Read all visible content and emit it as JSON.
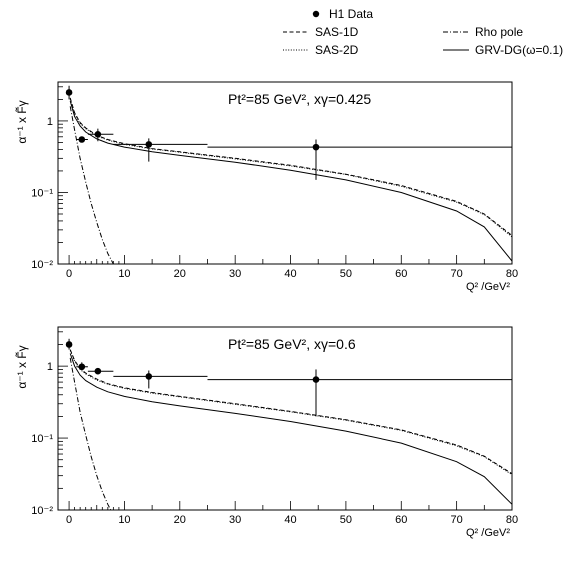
{
  "legend": {
    "entries": [
      {
        "label": "H1 Data",
        "style": "marker"
      },
      {
        "label": "SAS-1D",
        "style": "dashed"
      },
      {
        "label": "Rho pole",
        "style": "dashdot"
      },
      {
        "label": "SAS-2D",
        "style": "dotted"
      },
      {
        "label": "GRV-DG(ω=0.1)",
        "style": "solid"
      }
    ]
  },
  "chart_data": [
    {
      "type": "line",
      "annotation": "Pt²=85 GeV², xγ=0.425",
      "ylabel": "α⁻¹ x F̃γ",
      "xlabel": "Q² /GeV²",
      "xlim": [
        -2,
        80
      ],
      "ylim": [
        0.01,
        3.5
      ],
      "yscale": "log",
      "xticks": [
        0,
        10,
        20,
        30,
        40,
        50,
        60,
        70,
        80
      ],
      "yticks": [
        {
          "value": 0.01,
          "label": "10⁻²"
        },
        {
          "value": 0.1,
          "label": "10⁻¹"
        },
        {
          "value": 1,
          "label": "1"
        }
      ],
      "data_points": [
        {
          "x": 0,
          "y": 2.5,
          "xerr": [
            0,
            0
          ],
          "yerr": [
            0.5,
            0.6
          ]
        },
        {
          "x": 2.3,
          "y": 0.55,
          "xerr": [
            1.0,
            1.1
          ],
          "yerr": [
            0.0,
            0.0
          ]
        },
        {
          "x": 5.2,
          "y": 0.65,
          "xerr": [
            1.8,
            2.8
          ],
          "yerr": [
            0.13,
            0.13
          ]
        },
        {
          "x": 14.4,
          "y": 0.47,
          "xerr": [
            6.4,
            10.6
          ],
          "yerr": [
            0.2,
            0.1
          ]
        },
        {
          "x": 44.6,
          "y": 0.43,
          "xerr": [
            19.6,
            35.4
          ],
          "yerr": [
            0.28,
            0.12
          ]
        }
      ],
      "series": [
        {
          "name": "SAS-1D",
          "style": "dashed",
          "x": [
            0.2,
            1,
            2,
            3,
            5,
            7,
            10,
            15,
            20,
            30,
            40,
            50,
            60,
            70,
            75,
            80
          ],
          "values": [
            2.1,
            1.3,
            0.95,
            0.8,
            0.63,
            0.55,
            0.48,
            0.41,
            0.37,
            0.3,
            0.24,
            0.18,
            0.125,
            0.075,
            0.05,
            0.025
          ]
        },
        {
          "name": "SAS-2D",
          "style": "dotted",
          "x": [
            0.2,
            1,
            2,
            3,
            5,
            7,
            10,
            15,
            20,
            30,
            40,
            50,
            60,
            70,
            75,
            80
          ],
          "values": [
            2.0,
            1.25,
            0.92,
            0.78,
            0.62,
            0.54,
            0.47,
            0.405,
            0.365,
            0.295,
            0.235,
            0.178,
            0.122,
            0.073,
            0.049,
            0.024
          ]
        },
        {
          "name": "GRV-DG(ω=0.1)",
          "style": "solid",
          "x": [
            0.2,
            1,
            2,
            3,
            5,
            7,
            10,
            15,
            20,
            30,
            40,
            50,
            60,
            70,
            75,
            80
          ],
          "values": [
            1.9,
            1.15,
            0.85,
            0.7,
            0.56,
            0.49,
            0.43,
            0.37,
            0.33,
            0.265,
            0.205,
            0.15,
            0.1,
            0.055,
            0.033,
            0.011
          ]
        },
        {
          "name": "Rho pole",
          "style": "dashdot",
          "x": [
            0.2,
            1,
            2,
            3,
            4,
            5,
            6,
            7,
            8
          ],
          "values": [
            1.6,
            0.75,
            0.3,
            0.14,
            0.07,
            0.038,
            0.022,
            0.014,
            0.01
          ]
        }
      ]
    },
    {
      "type": "line",
      "annotation": "Pt²=85 GeV², xγ=0.6",
      "ylabel": "α⁻¹ x F̃γ",
      "xlabel": "Q² /GeV²",
      "xlim": [
        -2,
        80
      ],
      "ylim": [
        0.01,
        3.5
      ],
      "yscale": "log",
      "xticks": [
        0,
        10,
        20,
        30,
        40,
        50,
        60,
        70,
        80
      ],
      "yticks": [
        {
          "value": 0.01,
          "label": "10⁻²"
        },
        {
          "value": 0.1,
          "label": "10⁻¹"
        },
        {
          "value": 1,
          "label": "1"
        }
      ],
      "data_points": [
        {
          "x": 0,
          "y": 2.0,
          "xerr": [
            0,
            0
          ],
          "yerr": [
            0.3,
            0.4
          ]
        },
        {
          "x": 2.3,
          "y": 0.98,
          "xerr": [
            1.0,
            1.1
          ],
          "yerr": [
            0.1,
            0.15
          ]
        },
        {
          "x": 5.2,
          "y": 0.85,
          "xerr": [
            1.8,
            2.8
          ],
          "yerr": [
            0.07,
            0.07
          ]
        },
        {
          "x": 14.4,
          "y": 0.72,
          "xerr": [
            6.4,
            10.6
          ],
          "yerr": [
            0.23,
            0.15
          ]
        },
        {
          "x": 44.6,
          "y": 0.65,
          "xerr": [
            19.6,
            35.4
          ],
          "yerr": [
            0.45,
            0.25
          ]
        }
      ],
      "series": [
        {
          "name": "SAS-1D",
          "style": "dashed",
          "x": [
            0.2,
            1,
            2,
            3,
            5,
            7,
            10,
            15,
            20,
            30,
            40,
            50,
            60,
            70,
            75,
            80
          ],
          "values": [
            1.7,
            1.2,
            0.93,
            0.8,
            0.66,
            0.57,
            0.5,
            0.43,
            0.38,
            0.3,
            0.235,
            0.18,
            0.13,
            0.08,
            0.056,
            0.032
          ]
        },
        {
          "name": "SAS-2D",
          "style": "dotted",
          "x": [
            0.2,
            1,
            2,
            3,
            5,
            7,
            10,
            15,
            20,
            30,
            40,
            50,
            60,
            70,
            75,
            80
          ],
          "values": [
            1.65,
            1.17,
            0.9,
            0.78,
            0.64,
            0.56,
            0.49,
            0.42,
            0.375,
            0.295,
            0.232,
            0.177,
            0.128,
            0.078,
            0.055,
            0.031
          ]
        },
        {
          "name": "GRV-DG(ω=0.1)",
          "style": "solid",
          "x": [
            0.2,
            1,
            2,
            3,
            5,
            7,
            10,
            15,
            20,
            30,
            40,
            50,
            60,
            70,
            75,
            80
          ],
          "values": [
            1.5,
            1.0,
            0.75,
            0.63,
            0.51,
            0.44,
            0.38,
            0.32,
            0.28,
            0.22,
            0.17,
            0.125,
            0.085,
            0.047,
            0.029,
            0.012
          ]
        },
        {
          "name": "Rho pole",
          "style": "dashdot",
          "x": [
            0.2,
            1,
            2,
            3,
            4,
            5,
            6,
            7,
            8
          ],
          "values": [
            1.3,
            0.6,
            0.23,
            0.11,
            0.055,
            0.03,
            0.018,
            0.012,
            0.0085
          ]
        }
      ]
    }
  ]
}
